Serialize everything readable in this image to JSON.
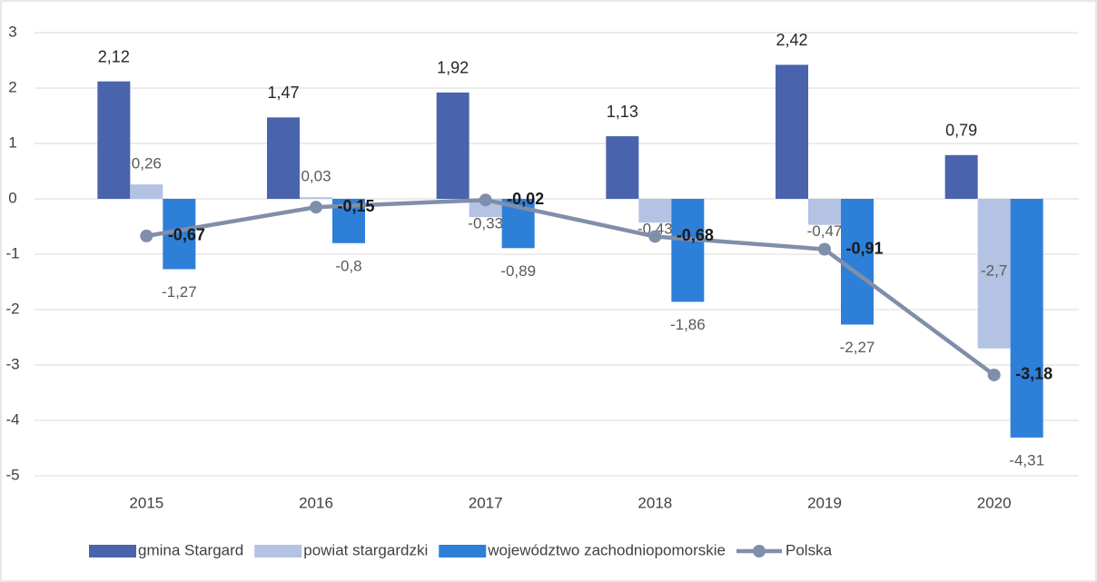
{
  "chart_data": {
    "type": "bar",
    "categories": [
      "2015",
      "2016",
      "2017",
      "2018",
      "2019",
      "2020"
    ],
    "ylim": [
      -5,
      3
    ],
    "yticks": [
      -5,
      -4,
      -3,
      -2,
      -1,
      0,
      1,
      2,
      3
    ],
    "grid": true,
    "legend": "bottom",
    "series": [
      {
        "name": "gmina Stargard",
        "color": "#4a63ad",
        "type": "bar",
        "values": [
          2.12,
          1.47,
          1.92,
          1.13,
          2.42,
          0.79
        ],
        "value_labels": [
          "2,12",
          "1,47",
          "1,92",
          "1,13",
          "2,42",
          "0,79"
        ]
      },
      {
        "name": "powiat stargardzki",
        "color": "#b4c2e3",
        "type": "bar",
        "values": [
          0.26,
          0.03,
          -0.33,
          -0.43,
          -0.47,
          -2.7
        ],
        "value_labels": [
          "0,26",
          "0,03",
          "-0,33",
          "-0,43",
          "-0,47",
          "-2,7"
        ]
      },
      {
        "name": "województwo zachodniopomorskie",
        "color": "#2e7fd8",
        "type": "bar",
        "values": [
          -1.27,
          -0.8,
          -0.89,
          -1.86,
          -2.27,
          -4.31
        ],
        "value_labels": [
          "-1,27",
          "-0,8",
          "-0,89",
          "-1,86",
          "-2,27",
          "-4,31"
        ]
      },
      {
        "name": "Polska",
        "color": "#7f8fa9",
        "type": "line",
        "values": [
          -0.67,
          -0.15,
          -0.02,
          -0.68,
          -0.91,
          -3.18
        ],
        "value_labels": [
          "-0,67",
          "-0,15",
          "-0,02",
          "-0,68",
          "-0,91",
          "-3,18"
        ]
      }
    ]
  }
}
